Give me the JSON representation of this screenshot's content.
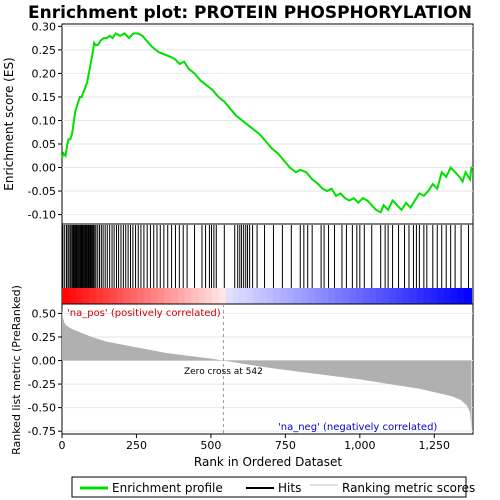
{
  "chart_data": {
    "type": "line",
    "title": "Enrichment plot: PROTEIN PHOSPHORYLATION",
    "top_panel": {
      "ylabel": "Enrichment score (ES)",
      "ylim": [
        -0.12,
        0.305
      ],
      "yticks": [
        "0.30",
        "0.25",
        "0.20",
        "0.15",
        "0.10",
        "0.05",
        "0.00",
        "-0.05",
        "-0.10"
      ],
      "ytick_values": [
        0.3,
        0.25,
        0.2,
        0.15,
        0.1,
        0.05,
        0.0,
        -0.05,
        -0.1
      ],
      "line_color": "#00e000",
      "es_profile": [
        [
          0,
          0.02
        ],
        [
          5,
          0.03
        ],
        [
          12,
          0.025
        ],
        [
          18,
          0.05
        ],
        [
          22,
          0.06
        ],
        [
          28,
          0.06
        ],
        [
          33,
          0.07
        ],
        [
          36,
          0.08
        ],
        [
          40,
          0.1
        ],
        [
          45,
          0.12
        ],
        [
          50,
          0.13
        ],
        [
          55,
          0.14
        ],
        [
          60,
          0.15
        ],
        [
          66,
          0.15
        ],
        [
          72,
          0.16
        ],
        [
          78,
          0.17
        ],
        [
          84,
          0.18
        ],
        [
          90,
          0.2
        ],
        [
          96,
          0.22
        ],
        [
          102,
          0.24
        ],
        [
          108,
          0.265
        ],
        [
          114,
          0.26
        ],
        [
          120,
          0.26
        ],
        [
          130,
          0.27
        ],
        [
          140,
          0.275
        ],
        [
          150,
          0.275
        ],
        [
          160,
          0.28
        ],
        [
          170,
          0.275
        ],
        [
          180,
          0.285
        ],
        [
          195,
          0.28
        ],
        [
          210,
          0.285
        ],
        [
          225,
          0.275
        ],
        [
          240,
          0.285
        ],
        [
          255,
          0.285
        ],
        [
          270,
          0.28
        ],
        [
          290,
          0.265
        ],
        [
          305,
          0.255
        ],
        [
          325,
          0.245
        ],
        [
          345,
          0.24
        ],
        [
          365,
          0.235
        ],
        [
          380,
          0.23
        ],
        [
          395,
          0.22
        ],
        [
          410,
          0.225
        ],
        [
          425,
          0.21
        ],
        [
          445,
          0.2
        ],
        [
          465,
          0.185
        ],
        [
          485,
          0.175
        ],
        [
          505,
          0.165
        ],
        [
          525,
          0.15
        ],
        [
          545,
          0.14
        ],
        [
          565,
          0.125
        ],
        [
          585,
          0.11
        ],
        [
          605,
          0.1
        ],
        [
          625,
          0.09
        ],
        [
          645,
          0.08
        ],
        [
          665,
          0.07
        ],
        [
          685,
          0.055
        ],
        [
          705,
          0.04
        ],
        [
          725,
          0.03
        ],
        [
          745,
          0.015
        ],
        [
          765,
          0.0
        ],
        [
          785,
          -0.01
        ],
        [
          800,
          -0.005
        ],
        [
          820,
          -0.01
        ],
        [
          840,
          -0.025
        ],
        [
          860,
          -0.035
        ],
        [
          875,
          -0.045
        ],
        [
          890,
          -0.05
        ],
        [
          905,
          -0.045
        ],
        [
          920,
          -0.06
        ],
        [
          935,
          -0.055
        ],
        [
          950,
          -0.065
        ],
        [
          965,
          -0.07
        ],
        [
          980,
          -0.065
        ],
        [
          995,
          -0.075
        ],
        [
          1010,
          -0.065
        ],
        [
          1025,
          -0.07
        ],
        [
          1040,
          -0.08
        ],
        [
          1055,
          -0.09
        ],
        [
          1070,
          -0.095
        ],
        [
          1080,
          -0.08
        ],
        [
          1095,
          -0.09
        ],
        [
          1110,
          -0.07
        ],
        [
          1125,
          -0.08
        ],
        [
          1140,
          -0.09
        ],
        [
          1155,
          -0.075
        ],
        [
          1170,
          -0.085
        ],
        [
          1185,
          -0.07
        ],
        [
          1200,
          -0.055
        ],
        [
          1215,
          -0.06
        ],
        [
          1230,
          -0.05
        ],
        [
          1245,
          -0.035
        ],
        [
          1260,
          -0.045
        ],
        [
          1275,
          -0.01
        ],
        [
          1290,
          -0.02
        ],
        [
          1305,
          0.0
        ],
        [
          1320,
          -0.01
        ],
        [
          1335,
          -0.02
        ],
        [
          1345,
          -0.03
        ],
        [
          1355,
          -0.01
        ],
        [
          1370,
          -0.025
        ],
        [
          1375,
          0.002
        ]
      ]
    },
    "hits_panel": {
      "legend_label": "Hits",
      "hit_positions": [
        3,
        9,
        15,
        20,
        24,
        29,
        33,
        36,
        38,
        40,
        43,
        45,
        48,
        50,
        53,
        56,
        58,
        61,
        64,
        67,
        70,
        73,
        76,
        79,
        82,
        85,
        88,
        90,
        92,
        95,
        97,
        100,
        103,
        106,
        110,
        114,
        120,
        126,
        132,
        138,
        145,
        152,
        160,
        168,
        175,
        183,
        190,
        198,
        206,
        214,
        222,
        230,
        238,
        247,
        256,
        265,
        275,
        286,
        297,
        308,
        319,
        330,
        342,
        355,
        368,
        381,
        394,
        407,
        420,
        445,
        470,
        482,
        495,
        502,
        510,
        518,
        545,
        580,
        590,
        597,
        603,
        610,
        617,
        623,
        630,
        640,
        655,
        680,
        710,
        740,
        770,
        800,
        812,
        825,
        840,
        870,
        880,
        895,
        915,
        940,
        955,
        975,
        990,
        1000,
        1015,
        1040,
        1070,
        1085,
        1095,
        1110,
        1130,
        1150,
        1165,
        1180,
        1190,
        1200,
        1215,
        1225,
        1245,
        1260,
        1275,
        1290,
        1305,
        1320,
        1340,
        1365
      ]
    },
    "ranked_panel": {
      "ylabel": "Ranked list metric (PreRanked)",
      "ylim": [
        -0.78,
        0.6
      ],
      "yticks": [
        "0.50",
        "0.25",
        "0.00",
        "-0.25",
        "-0.50",
        "-0.75"
      ],
      "ytick_values": [
        0.5,
        0.25,
        0.0,
        -0.25,
        -0.5,
        -0.75
      ],
      "fill_color": "#b0b0b0",
      "metric_profile": [
        [
          0,
          0.55
        ],
        [
          3,
          0.46
        ],
        [
          8,
          0.4
        ],
        [
          15,
          0.37
        ],
        [
          30,
          0.34
        ],
        [
          60,
          0.3
        ],
        [
          100,
          0.25
        ],
        [
          150,
          0.2
        ],
        [
          200,
          0.17
        ],
        [
          250,
          0.14
        ],
        [
          300,
          0.11
        ],
        [
          350,
          0.08
        ],
        [
          400,
          0.06
        ],
        [
          450,
          0.04
        ],
        [
          500,
          0.02
        ],
        [
          542,
          0.0
        ],
        [
          600,
          -0.03
        ],
        [
          700,
          -0.08
        ],
        [
          800,
          -0.12
        ],
        [
          900,
          -0.16
        ],
        [
          1000,
          -0.2
        ],
        [
          1100,
          -0.25
        ],
        [
          1200,
          -0.3
        ],
        [
          1270,
          -0.35
        ],
        [
          1310,
          -0.38
        ],
        [
          1340,
          -0.42
        ],
        [
          1360,
          -0.48
        ],
        [
          1370,
          -0.55
        ],
        [
          1375,
          -0.75
        ]
      ],
      "zero_cross_label": "Zero cross at 542",
      "zero_cross": 542,
      "pos_label": "'na_pos' (positively correlated)",
      "neg_label": "'na_neg' (negatively correlated)"
    },
    "xlabel": "Rank in Ordered Dataset",
    "xlim": [
      0,
      1380
    ],
    "xticks": [
      "0",
      "250",
      "500",
      "750",
      "1,000",
      "1,250"
    ],
    "xtick_values": [
      0,
      250,
      500,
      750,
      1000,
      1250
    ],
    "total_genes": 1375,
    "legend": {
      "entries": [
        "Enrichment profile",
        "Hits",
        "Ranking metric scores"
      ],
      "placement": "bottom"
    },
    "colors": {
      "positive": "#ff0000",
      "negative": "#0000ff",
      "grid": "#e6e6e6"
    }
  }
}
